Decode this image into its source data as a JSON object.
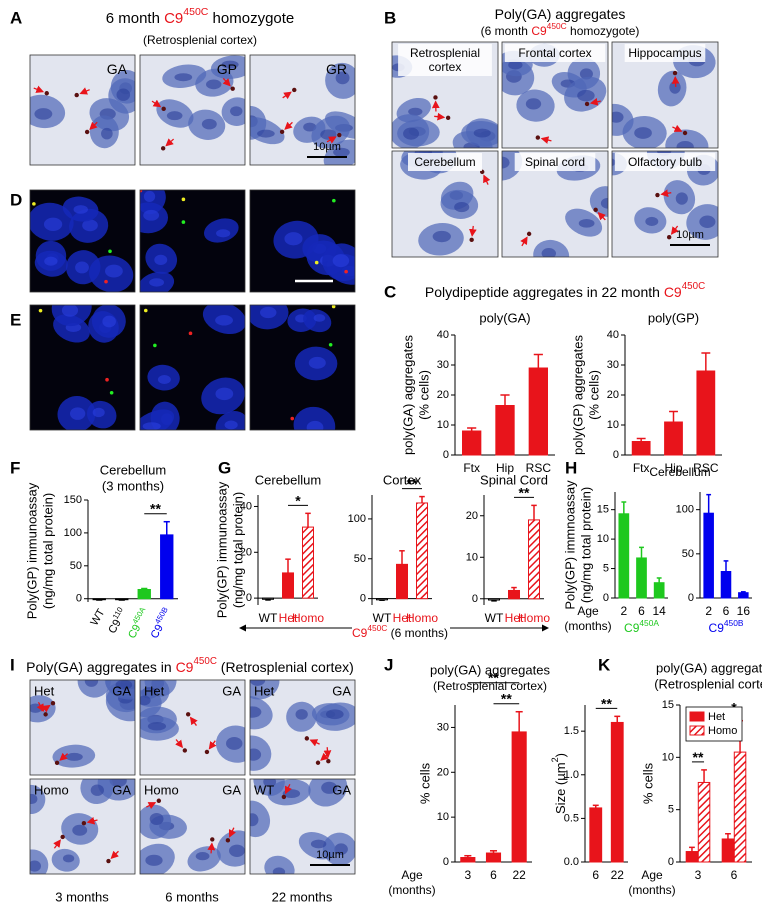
{
  "panel_labels": [
    "A",
    "B",
    "C",
    "D",
    "E",
    "F",
    "G",
    "H",
    "I",
    "J",
    "K"
  ],
  "panel_a": {
    "title": [
      {
        "t": "6 month "
      },
      {
        "t": "C9",
        "color": "#e8141b"
      },
      {
        "t": "450C",
        "sup": true,
        "color": "#e8141b"
      },
      {
        "t": " homozygote"
      }
    ],
    "subtitle": "(Retrosplenial cortex)",
    "images": [
      "GA",
      "GP",
      "GR"
    ],
    "scale_bar": "10µm"
  },
  "panel_b": {
    "title": "Poly(GA) aggregates",
    "subtitle": [
      {
        "t": "(6 month "
      },
      {
        "t": "C9",
        "color": "#e8141b"
      },
      {
        "t": "450C",
        "sup": true,
        "color": "#e8141b"
      },
      {
        "t": " homozygote)"
      }
    ],
    "images": [
      [
        "Retrosplenial",
        "cortex"
      ],
      [
        "Frontal cortex"
      ],
      [
        "Hippocampus"
      ],
      [
        "Cerebellum"
      ],
      [
        "Spinal cord"
      ],
      [
        "Olfactory bulb"
      ]
    ],
    "scale_bar": "10µm"
  },
  "panel_c": {
    "title": [
      {
        "t": "Polydipeptide aggregates in 22 month "
      },
      {
        "t": "C9",
        "color": "#e8141b"
      },
      {
        "t": "450C",
        "sup": true,
        "color": "#e8141b"
      }
    ]
  },
  "panel_g": {
    "xlabel": [
      {
        "t": "C9",
        "color": "#e8141b"
      },
      {
        "t": "450C",
        "sup": true,
        "color": "#e8141b"
      },
      {
        "t": " (6 months)"
      }
    ]
  },
  "panel_h": {
    "title": "Cerebellum"
  },
  "panel_i": {
    "title": [
      {
        "t": "Poly(GA) aggregates in "
      },
      {
        "t": "C9",
        "color": "#e8141b"
      },
      {
        "t": "450C",
        "sup": true,
        "color": "#e8141b"
      },
      {
        "t": " (Retrosplenial cortex)"
      }
    ],
    "images": [
      {
        "genotype": "Het",
        "stain": "GA"
      },
      {
        "genotype": "Het",
        "stain": "GA"
      },
      {
        "genotype": "Het",
        "stain": "GA"
      },
      {
        "genotype": "Homo",
        "stain": "GA"
      },
      {
        "genotype": "Homo",
        "stain": "GA"
      },
      {
        "genotype": "WT",
        "stain": "GA"
      }
    ],
    "columns": [
      "3 months",
      "6 months",
      "22 months"
    ],
    "scale_bar": "10µm"
  },
  "panel_j": {
    "title": "poly(GA) aggregates",
    "subtitle": "(Retrosplenial cortex)"
  },
  "chart_data": [
    {
      "type": "bar",
      "title": [
        "poly(GA)"
      ],
      "ylabel": [
        "poly(GA) aggregates",
        "(% cells)"
      ],
      "categories": [
        "Ftx",
        "Hip",
        "RSC"
      ],
      "values": [
        8,
        16.5,
        29
      ],
      "errors": [
        1,
        3.5,
        4.5
      ],
      "colors": [
        "#e8141b",
        "#e8141b",
        "#e8141b"
      ],
      "fill_styles": [
        "solid",
        "solid",
        "solid"
      ],
      "ylim": [
        0,
        40
      ],
      "yticks": [
        0,
        10,
        20,
        30,
        40
      ],
      "grid": false
    },
    {
      "type": "bar",
      "title": [
        "poly(GP)"
      ],
      "ylabel": [
        "poly(GP) aggregates",
        "(% cells)"
      ],
      "categories": [
        "Ftx",
        "Hip",
        "RSC"
      ],
      "values": [
        4.5,
        11,
        28
      ],
      "errors": [
        1,
        3.5,
        6
      ],
      "colors": [
        "#e8141b",
        "#e8141b",
        "#e8141b"
      ],
      "fill_styles": [
        "solid",
        "solid",
        "solid"
      ],
      "ylim": [
        0,
        40
      ],
      "yticks": [
        0,
        10,
        20,
        30,
        40
      ],
      "grid": false
    },
    {
      "type": "bar",
      "title": [
        "Cerebellum",
        "(3 months)"
      ],
      "ylabel": [
        "Poly(GP) immunoassay",
        "(ng/mg total protein)"
      ],
      "categories": [
        [
          {
            "t": "WT"
          }
        ],
        [
          {
            "t": "C9"
          },
          {
            "t": "110",
            "sup": true
          }
        ],
        [
          {
            "t": "C9",
            "color": "#1ec81e"
          },
          {
            "t": "450A",
            "sup": true,
            "color": "#1ec81e"
          }
        ],
        [
          {
            "t": "C9",
            "color": "#0000ee"
          },
          {
            "t": "450B",
            "sup": true,
            "color": "#0000ee"
          }
        ]
      ],
      "values": [
        -1.5,
        -1.5,
        14,
        97
      ],
      "errors": [
        0.5,
        0.5,
        1.5,
        20
      ],
      "colors": [
        "#000000",
        "#000000",
        "#1ec81e",
        "#0000ee"
      ],
      "fill_styles": [
        "outline",
        "solid",
        "solid",
        "solid"
      ],
      "significance": [
        {
          "pair": [
            2,
            3
          ],
          "label": "**"
        }
      ],
      "ylim": [
        -5,
        150
      ],
      "yticks": [
        0,
        50,
        100,
        150
      ],
      "rotate_labels": true,
      "grid": false
    },
    {
      "type": "bar",
      "title": [
        "Cerebellum"
      ],
      "ylabel": [
        "Poly(GP) immunoassay",
        "(ng/mg total protein)"
      ],
      "categories": [
        [
          {
            "t": "WT"
          }
        ],
        [
          {
            "t": "Het",
            "color": "#e8141b"
          }
        ],
        [
          {
            "t": "Homo",
            "color": "#e8141b"
          }
        ]
      ],
      "values": [
        -0.5,
        11,
        31
      ],
      "errors": [
        0.3,
        6,
        6
      ],
      "colors": [
        "#000000",
        "#e8141b",
        "#e8141b"
      ],
      "fill_styles": [
        "outline",
        "solid",
        "hatch"
      ],
      "significance": [
        {
          "pair": [
            1,
            2
          ],
          "label": "*"
        }
      ],
      "ylim": [
        -3,
        45
      ],
      "yticks": [
        0,
        20,
        40
      ],
      "grid": false
    },
    {
      "type": "bar",
      "title": [
        "Cortex"
      ],
      "categories": [
        [
          {
            "t": "WT"
          }
        ],
        [
          {
            "t": "Het",
            "color": "#e8141b"
          }
        ],
        [
          {
            "t": "Homo",
            "color": "#e8141b"
          }
        ]
      ],
      "values": [
        -1.5,
        43,
        120
      ],
      "errors": [
        0.5,
        17,
        8
      ],
      "colors": [
        "#000000",
        "#e8141b",
        "#e8141b"
      ],
      "fill_styles": [
        "outline",
        "solid",
        "hatch"
      ],
      "significance": [
        {
          "pair": [
            1,
            2
          ],
          "label": "**"
        }
      ],
      "ylim": [
        -8,
        130
      ],
      "yticks": [
        0,
        50,
        100
      ],
      "grid": false
    },
    {
      "type": "bar",
      "title": [
        "Spinal Cord"
      ],
      "categories": [
        [
          {
            "t": "WT"
          }
        ],
        [
          {
            "t": "Het",
            "color": "#e8141b"
          }
        ],
        [
          {
            "t": "Homo",
            "color": "#e8141b"
          }
        ]
      ],
      "values": [
        -0.3,
        2,
        19
      ],
      "errors": [
        0.2,
        0.7,
        3.5
      ],
      "colors": [
        "#000000",
        "#e8141b",
        "#e8141b"
      ],
      "fill_styles": [
        "outline",
        "solid",
        "hatch"
      ],
      "significance": [
        {
          "pair": [
            1,
            2
          ],
          "label": "**"
        }
      ],
      "ylim": [
        -1.5,
        25
      ],
      "yticks": [
        0,
        10,
        20
      ],
      "grid": false
    },
    {
      "type": "bar",
      "ylabel": [
        "Poly(GP) immnoassay",
        "(ng/mg total protein)"
      ],
      "xlabel": [
        "Age",
        "(months)"
      ],
      "categories": [
        "2",
        "6",
        "14"
      ],
      "values": [
        14.3,
        6.8,
        2.6
      ],
      "errors": [
        2,
        1.8,
        0.8
      ],
      "colors": [
        "#1ec81e",
        "#1ec81e",
        "#1ec81e"
      ],
      "fill_styles": [
        "solid",
        "solid",
        "solid"
      ],
      "group_label": [
        {
          "t": "C9",
          "color": "#1ec81e"
        },
        {
          "t": "450A",
          "sup": true,
          "color": "#1ec81e"
        }
      ],
      "ylim": [
        0,
        18
      ],
      "yticks": [
        0,
        5,
        10,
        15
      ],
      "grid": false
    },
    {
      "type": "bar",
      "categories": [
        "2",
        "6",
        "16"
      ],
      "values": [
        96,
        30,
        6
      ],
      "errors": [
        21,
        12,
        1
      ],
      "colors": [
        "#0000ee",
        "#0000ee",
        "#0000ee"
      ],
      "fill_styles": [
        "solid",
        "solid",
        "solid"
      ],
      "group_label": [
        {
          "t": "C9",
          "color": "#0000ee"
        },
        {
          "t": "450B",
          "sup": true,
          "color": "#0000ee"
        }
      ],
      "ylim": [
        0,
        120
      ],
      "yticks": [
        0,
        50,
        100
      ],
      "grid": false
    },
    {
      "type": "bar",
      "ylabel": [
        "% cells"
      ],
      "xlabel": [
        "Age",
        "(months)"
      ],
      "categories": [
        "3",
        "6",
        "22"
      ],
      "values": [
        1,
        2,
        29
      ],
      "errors": [
        0.4,
        0.5,
        4.5
      ],
      "colors": [
        "#e8141b",
        "#e8141b",
        "#e8141b"
      ],
      "fill_styles": [
        "solid",
        "solid",
        "solid"
      ],
      "significance": [
        {
          "pair": [
            1,
            2
          ],
          "label": "**"
        },
        {
          "pair": [
            0,
            2
          ],
          "label": "**"
        }
      ],
      "ylim": [
        0,
        35
      ],
      "yticks": [
        0,
        10,
        20,
        30
      ],
      "grid": false
    },
    {
      "type": "bar",
      "ylabel": [
        [
          {
            "t": "Size (µm"
          },
          {
            "t": "2",
            "sup": true
          },
          {
            "t": ")"
          }
        ]
      ],
      "categories": [
        "6",
        "22"
      ],
      "values": [
        0.62,
        1.6
      ],
      "errors": [
        0.03,
        0.07
      ],
      "colors": [
        "#e8141b",
        "#e8141b"
      ],
      "fill_styles": [
        "solid",
        "solid"
      ],
      "significance": [
        {
          "pair": [
            0,
            1
          ],
          "label": "**"
        }
      ],
      "ylim": [
        0,
        1.8
      ],
      "yticks": [
        {
          "value": 0,
          "label": "0.0"
        },
        {
          "value": 0.5,
          "label": "0.5"
        },
        {
          "value": 1,
          "label": "1.0"
        },
        {
          "value": 1.5,
          "label": "1.5"
        }
      ],
      "grid": false
    },
    {
      "type": "bar",
      "title": [
        "poly(GA) aggregates",
        "(Retrosplenial cortex)"
      ],
      "ylabel": [
        "% cells"
      ],
      "xlabel": [
        "Age",
        "(months)"
      ],
      "categories": [
        "3",
        "6"
      ],
      "series": [
        {
          "name": "Het",
          "color": "#e8141b",
          "fill_style": "solid",
          "values": [
            1,
            2.2
          ],
          "errors": [
            0.4,
            0.5
          ]
        },
        {
          "name": "Homo",
          "color": "#e8141b",
          "fill_style": "hatch",
          "values": [
            7.6,
            10.5
          ],
          "errors": [
            1.2,
            3
          ]
        }
      ],
      "significance": [
        {
          "group": 0,
          "label": "**"
        },
        {
          "group": 1,
          "label": "*"
        }
      ],
      "legend": "upper left",
      "ylim": [
        0,
        15
      ],
      "yticks": [
        0,
        5,
        10,
        15
      ],
      "grid": false
    }
  ]
}
